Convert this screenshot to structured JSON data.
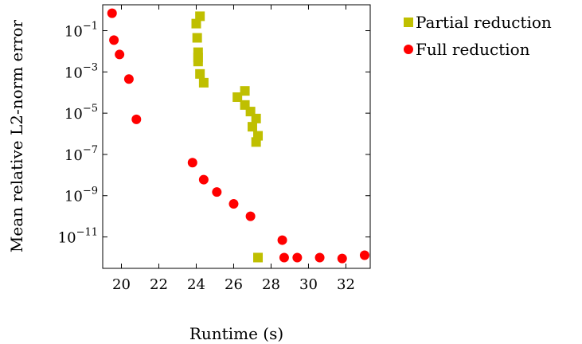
{
  "chart_data": {
    "type": "scatter",
    "title": "",
    "xlabel": "Runtime (s)",
    "ylabel": "Mean relative L2-norm error",
    "xlim": [
      19,
      33.3
    ],
    "ylim": [
      3e-13,
      1.8
    ],
    "yscale": "log",
    "grid": false,
    "legend_position": "outside-top-right",
    "x_ticks": [
      {
        "value": 20,
        "label": "20"
      },
      {
        "value": 22,
        "label": "22"
      },
      {
        "value": 24,
        "label": "24"
      },
      {
        "value": 26,
        "label": "26"
      },
      {
        "value": 28,
        "label": "28"
      },
      {
        "value": 30,
        "label": "30"
      },
      {
        "value": 32,
        "label": "32"
      }
    ],
    "y_ticks": [
      {
        "value": 0.1,
        "base": "10",
        "exp": "−1"
      },
      {
        "value": 0.001,
        "base": "10",
        "exp": "−3"
      },
      {
        "value": 1e-05,
        "base": "10",
        "exp": "−5"
      },
      {
        "value": 1e-07,
        "base": "10",
        "exp": "−7"
      },
      {
        "value": 1e-09,
        "base": "10",
        "exp": "−9"
      },
      {
        "value": 1e-11,
        "base": "10",
        "exp": "−11"
      }
    ],
    "series": [
      {
        "name": "Partial reduction",
        "marker": "square",
        "color": "#bfbf00",
        "points": [
          {
            "x": 24.2,
            "y": 0.5
          },
          {
            "x": 24.0,
            "y": 0.22
          },
          {
            "x": 24.05,
            "y": 0.045
          },
          {
            "x": 24.1,
            "y": 0.009
          },
          {
            "x": 24.1,
            "y": 0.005
          },
          {
            "x": 24.1,
            "y": 0.0032
          },
          {
            "x": 24.2,
            "y": 0.0008
          },
          {
            "x": 24.4,
            "y": 0.0003
          },
          {
            "x": 26.6,
            "y": 0.00012
          },
          {
            "x": 26.2,
            "y": 6e-05
          },
          {
            "x": 26.6,
            "y": 2.5e-05
          },
          {
            "x": 26.9,
            "y": 1.2e-05
          },
          {
            "x": 27.2,
            "y": 5.5e-06
          },
          {
            "x": 27.0,
            "y": 2.2e-06
          },
          {
            "x": 27.3,
            "y": 8e-07
          },
          {
            "x": 27.2,
            "y": 4e-07
          },
          {
            "x": 27.3,
            "y": 1e-12
          }
        ]
      },
      {
        "name": "Full reduction",
        "marker": "circle",
        "color": "#ff0000",
        "points": [
          {
            "x": 19.5,
            "y": 0.7
          },
          {
            "x": 19.6,
            "y": 0.035
          },
          {
            "x": 19.9,
            "y": 0.007
          },
          {
            "x": 20.4,
            "y": 0.00045
          },
          {
            "x": 20.8,
            "y": 5e-06
          },
          {
            "x": 23.8,
            "y": 4e-08
          },
          {
            "x": 24.4,
            "y": 6e-09
          },
          {
            "x": 25.1,
            "y": 1.5e-09
          },
          {
            "x": 26.0,
            "y": 4e-10
          },
          {
            "x": 26.9,
            "y": 1e-10
          },
          {
            "x": 28.6,
            "y": 7e-12
          },
          {
            "x": 28.7,
            "y": 1e-12
          },
          {
            "x": 29.4,
            "y": 1e-12
          },
          {
            "x": 30.6,
            "y": 1e-12
          },
          {
            "x": 31.8,
            "y": 9e-13
          },
          {
            "x": 33.0,
            "y": 1.3e-12
          }
        ]
      }
    ]
  }
}
